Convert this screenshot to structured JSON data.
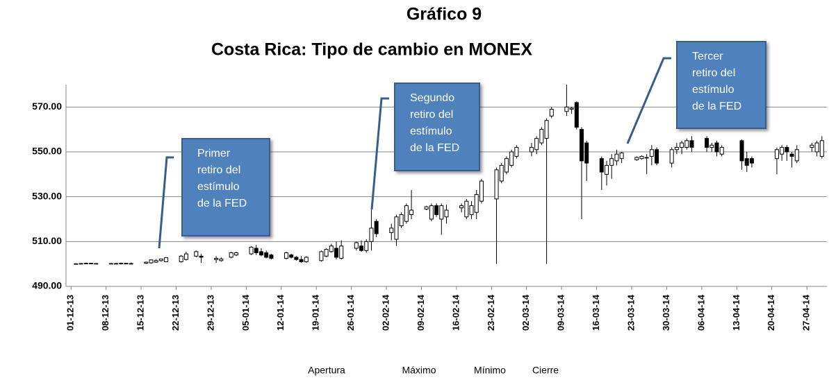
{
  "chart_data": {
    "type": "candlestick",
    "title": "Gráfico 9",
    "subtitle": "Costa Rica:  Tipo de cambio en MONEX",
    "ylim": [
      490,
      580
    ],
    "yticks": [
      {
        "value": 490,
        "label": "490.00"
      },
      {
        "value": 510,
        "label": "510.00"
      },
      {
        "value": 530,
        "label": "530.00"
      },
      {
        "value": 550,
        "label": "550.00"
      },
      {
        "value": 570,
        "label": "570.00"
      }
    ],
    "xlim": [
      "2013-11-30",
      "2014-05-01"
    ],
    "xticks": [
      {
        "value": "2013-12-01",
        "label": "01-12-13"
      },
      {
        "value": "2013-12-08",
        "label": "08-12-13"
      },
      {
        "value": "2013-12-15",
        "label": "15-12-13"
      },
      {
        "value": "2013-12-22",
        "label": "22-12-13"
      },
      {
        "value": "2013-12-29",
        "label": "29-12-13"
      },
      {
        "value": "2014-01-05",
        "label": "05-01-14"
      },
      {
        "value": "2014-01-12",
        "label": "12-01-14"
      },
      {
        "value": "2014-01-19",
        "label": "19-01-14"
      },
      {
        "value": "2014-01-26",
        "label": "26-01-14"
      },
      {
        "value": "2014-02-02",
        "label": "02-02-14"
      },
      {
        "value": "2014-02-09",
        "label": "09-02-14"
      },
      {
        "value": "2014-02-16",
        "label": "16-02-14"
      },
      {
        "value": "2014-02-23",
        "label": "23-02-14"
      },
      {
        "value": "2014-03-02",
        "label": "02-03-14"
      },
      {
        "value": "2014-03-09",
        "label": "09-03-14"
      },
      {
        "value": "2014-03-16",
        "label": "16-03-14"
      },
      {
        "value": "2014-03-23",
        "label": "23-03-14"
      },
      {
        "value": "2014-03-30",
        "label": "30-03-14"
      },
      {
        "value": "2014-04-06",
        "label": "06-04-14"
      },
      {
        "value": "2014-04-13",
        "label": "13-04-14"
      },
      {
        "value": "2014-04-20",
        "label": "20-04-14"
      },
      {
        "value": "2014-04-27",
        "label": "27-04-14"
      }
    ],
    "grid": true,
    "up_color": "#ffffff",
    "down_color": "#000000",
    "x": [
      "2013-12-02",
      "2013-12-03",
      "2013-12-04",
      "2013-12-05",
      "2013-12-06",
      "2013-12-09",
      "2013-12-10",
      "2013-12-11",
      "2013-12-12",
      "2013-12-13",
      "2013-12-16",
      "2013-12-17",
      "2013-12-18",
      "2013-12-19",
      "2013-12-20",
      "2013-12-23",
      "2013-12-24",
      "2013-12-26",
      "2013-12-27",
      "2013-12-30",
      "2013-12-31",
      "2014-01-02",
      "2014-01-03",
      "2014-01-06",
      "2014-01-07",
      "2014-01-08",
      "2014-01-09",
      "2014-01-10",
      "2014-01-13",
      "2014-01-14",
      "2014-01-15",
      "2014-01-16",
      "2014-01-17",
      "2014-01-20",
      "2014-01-21",
      "2014-01-22",
      "2014-01-23",
      "2014-01-24",
      "2014-01-27",
      "2014-01-28",
      "2014-01-29",
      "2014-01-30",
      "2014-01-31",
      "2014-02-03",
      "2014-02-04",
      "2014-02-05",
      "2014-02-06",
      "2014-02-07",
      "2014-02-10",
      "2014-02-11",
      "2014-02-12",
      "2014-02-13",
      "2014-02-14",
      "2014-02-17",
      "2014-02-18",
      "2014-02-19",
      "2014-02-20",
      "2014-02-21",
      "2014-02-24",
      "2014-02-25",
      "2014-02-26",
      "2014-02-27",
      "2014-02-28",
      "2014-03-03",
      "2014-03-04",
      "2014-03-05",
      "2014-03-06",
      "2014-03-07",
      "2014-03-10",
      "2014-03-11",
      "2014-03-12",
      "2014-03-13",
      "2014-03-14",
      "2014-03-17",
      "2014-03-18",
      "2014-03-19",
      "2014-03-20",
      "2014-03-21",
      "2014-03-24",
      "2014-03-25",
      "2014-03-26",
      "2014-03-27",
      "2014-03-28",
      "2014-03-31",
      "2014-04-01",
      "2014-04-02",
      "2014-04-03",
      "2014-04-04",
      "2014-04-07",
      "2014-04-08",
      "2014-04-09",
      "2014-04-10",
      "2014-04-14",
      "2014-04-15",
      "2014-04-16",
      "2014-04-21",
      "2014-04-22",
      "2014-04-23",
      "2014-04-24",
      "2014-04-25",
      "2014-04-28",
      "2014-04-29",
      "2014-04-30"
    ],
    "series": [
      {
        "name": "Apertura",
        "values": [
          500.0,
          500.1,
          500.2,
          500.3,
          500.2,
          500.1,
          500.2,
          500.1,
          500.3,
          500.0,
          500.3,
          500.5,
          500.8,
          501.5,
          501.0,
          501.0,
          502.0,
          503.5,
          503.5,
          502.0,
          501.5,
          503.0,
          504.0,
          504.5,
          507.0,
          505.5,
          505.0,
          504.0,
          502.5,
          504.0,
          503.0,
          502.0,
          501.0,
          501.5,
          503.5,
          505.5,
          507.0,
          502.5,
          507.0,
          508.0,
          506.0,
          510.0,
          519.0,
          514.0,
          511.0,
          517.0,
          519.0,
          522.0,
          524.5,
          520.0,
          526.0,
          520.0,
          521.0,
          525.0,
          521.0,
          522.0,
          523.0,
          528.0,
          529.0,
          537.0,
          541.0,
          544.0,
          548.0,
          550.0,
          551.0,
          554.0,
          556.0,
          566.0,
          568.0,
          569.0,
          572.0,
          560.0,
          554.0,
          547.0,
          540.0,
          544.0,
          546.0,
          547.0,
          546.5,
          547.0,
          547.5,
          548.0,
          551.0,
          545.0,
          551.0,
          552.0,
          552.0,
          555.0,
          556.0,
          552.0,
          554.0,
          549.0,
          555.0,
          547.0,
          547.0,
          547.0,
          549.0,
          552.0,
          549.0,
          546.0,
          552.0,
          550.0,
          548.0
        ]
      },
      {
        "name": "Máximo",
        "values": [
          500.3,
          500.4,
          500.6,
          500.5,
          500.4,
          500.4,
          500.5,
          500.6,
          500.5,
          500.6,
          501.0,
          502.0,
          502.2,
          502.4,
          503.0,
          504.0,
          505.5,
          506.0,
          504.5,
          503.5,
          503.0,
          505.5,
          505.5,
          508.0,
          508.5,
          507.0,
          506.0,
          504.5,
          505.5,
          504.5,
          503.5,
          503.5,
          503.5,
          506.0,
          507.0,
          509.0,
          510.0,
          510.5,
          510.0,
          510.5,
          511.0,
          526.0,
          520.0,
          518.0,
          522.0,
          523.0,
          527.0,
          533.0,
          526.0,
          527.0,
          527.0,
          527.0,
          526.5,
          527.0,
          529.0,
          528.0,
          533.0,
          538.0,
          543.0,
          545.0,
          548.0,
          551.0,
          553.0,
          554.0,
          557.0,
          561.0,
          565.0,
          570.0,
          580.0,
          570.0,
          572.5,
          561.0,
          555.0,
          548.0,
          546.0,
          549.0,
          551.0,
          550.0,
          548.0,
          548.5,
          549.0,
          553.0,
          552.0,
          552.0,
          554.0,
          555.0,
          556.0,
          557.0,
          557.0,
          554.0,
          555.0,
          553.0,
          555.5,
          550.0,
          548.0,
          552.0,
          553.0,
          553.0,
          550.0,
          553.0,
          554.0,
          555.0,
          557.0
        ]
      },
      {
        "name": "Mínimo",
        "values": [
          499.8,
          499.9,
          500.0,
          500.0,
          499.9,
          499.9,
          500.0,
          499.8,
          499.9,
          499.8,
          500.0,
          500.2,
          500.5,
          501.0,
          500.8,
          500.6,
          501.5,
          503.0,
          500.5,
          500.5,
          501.0,
          502.5,
          503.5,
          504.0,
          504.0,
          503.5,
          502.5,
          502.0,
          502.0,
          502.5,
          501.5,
          500.5,
          500.5,
          501.0,
          503.0,
          505.0,
          502.0,
          502.0,
          506.0,
          505.5,
          505.0,
          506.0,
          512.0,
          510.5,
          508.0,
          516.0,
          518.0,
          520.0,
          524.0,
          519.0,
          521.0,
          513.0,
          518.0,
          523.0,
          520.0,
          520.0,
          520.0,
          527.0,
          500.0,
          536.0,
          540.0,
          543.0,
          547.0,
          548.0,
          549.0,
          553.0,
          500.0,
          565.0,
          566.0,
          567.0,
          560.0,
          520.0,
          537.0,
          533.0,
          535.0,
          538.0,
          544.0,
          545.0,
          546.0,
          546.5,
          540.0,
          544.0,
          544.0,
          543.0,
          549.0,
          549.0,
          551.0,
          550.0,
          550.0,
          550.0,
          548.0,
          548.0,
          542.0,
          541.0,
          543.0,
          540.0,
          546.0,
          546.0,
          543.0,
          545.0,
          550.0,
          548.0,
          547.0
        ]
      },
      {
        "name": "Cierre",
        "values": [
          500.1,
          500.2,
          500.3,
          500.2,
          500.1,
          500.2,
          500.1,
          500.3,
          500.0,
          500.2,
          500.8,
          501.8,
          501.5,
          502.2,
          502.8,
          503.5,
          504.5,
          505.5,
          503.0,
          502.5,
          502.2,
          505.0,
          505.0,
          507.5,
          505.0,
          504.0,
          503.0,
          502.5,
          505.0,
          503.0,
          502.0,
          501.0,
          503.0,
          505.5,
          506.5,
          508.0,
          503.0,
          508.0,
          509.5,
          506.0,
          510.0,
          516.0,
          513.5,
          516.0,
          521.0,
          522.0,
          526.0,
          524.0,
          525.5,
          526.0,
          522.0,
          526.0,
          524.0,
          526.0,
          528.0,
          526.0,
          531.0,
          537.0,
          542.0,
          544.0,
          547.0,
          550.0,
          552.0,
          552.0,
          556.0,
          560.0,
          564.0,
          569.0,
          570.0,
          569.5,
          561.0,
          546.0,
          545.0,
          541.0,
          544.0,
          547.0,
          549.0,
          549.5,
          547.5,
          548.0,
          547.5,
          551.0,
          545.0,
          551.0,
          552.0,
          554.0,
          555.0,
          552.0,
          552.0,
          553.0,
          550.0,
          552.0,
          546.0,
          544.0,
          545.0,
          551.0,
          552.0,
          550.0,
          548.0,
          551.0,
          553.0,
          554.0,
          555.0
        ]
      }
    ],
    "annotations": [
      {
        "lines": [
          "Primer",
          "retiro del",
          "estímulo",
          "de la FED"
        ]
      },
      {
        "lines": [
          "Segundo",
          "retiro del",
          "estímulo",
          "de la FED"
        ]
      },
      {
        "lines": [
          "Tercer",
          "retiro del",
          "estímulo",
          "de la FED"
        ]
      }
    ]
  }
}
